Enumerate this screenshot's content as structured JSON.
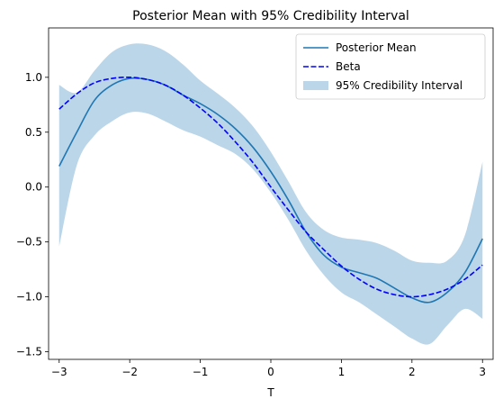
{
  "chart_data": {
    "type": "line",
    "title": "Posterior Mean with 95% Credibility Interval",
    "xlabel": "T",
    "ylabel": "",
    "xlim": [
      -3.15,
      3.15
    ],
    "ylim": [
      -1.57,
      1.45
    ],
    "xticks": [
      -3,
      -2,
      -1,
      0,
      1,
      2,
      3
    ],
    "xtick_labels": [
      "−3",
      "−2",
      "−1",
      "0",
      "1",
      "2",
      "3"
    ],
    "yticks": [
      -1.5,
      -1.0,
      -0.5,
      0.0,
      0.5,
      1.0
    ],
    "ytick_labels": [
      "−1.5",
      "−1.0",
      "−0.5",
      "0.0",
      "0.5",
      "1.0"
    ],
    "legend_position": "top-right",
    "x": [
      -3.0,
      -2.75,
      -2.5,
      -2.25,
      -2.0,
      -1.75,
      -1.5,
      -1.25,
      -1.0,
      -0.75,
      -0.5,
      -0.25,
      0.0,
      0.25,
      0.5,
      0.75,
      1.0,
      1.25,
      1.5,
      1.75,
      2.0,
      2.25,
      2.5,
      2.75,
      3.0
    ],
    "series": [
      {
        "name": "Posterior Mean",
        "style": "solid",
        "color": "#1f77b4",
        "values": [
          0.19,
          0.5,
          0.79,
          0.93,
          0.99,
          0.98,
          0.93,
          0.84,
          0.76,
          0.66,
          0.53,
          0.36,
          0.14,
          -0.12,
          -0.41,
          -0.62,
          -0.73,
          -0.78,
          -0.83,
          -0.92,
          -1.01,
          -1.05,
          -0.96,
          -0.78,
          -0.47
        ]
      },
      {
        "name": "Beta",
        "style": "dashed",
        "color": "#0000ff",
        "values": [
          0.71,
          0.85,
          0.95,
          0.99,
          1.0,
          0.98,
          0.93,
          0.84,
          0.72,
          0.58,
          0.41,
          0.22,
          0.0,
          -0.21,
          -0.41,
          -0.57,
          -0.72,
          -0.84,
          -0.93,
          -0.98,
          -1.0,
          -0.98,
          -0.93,
          -0.84,
          -0.71
        ]
      },
      {
        "name": "95% Credibility Interval",
        "style": "band",
        "color": "#1f77b4",
        "opacity": 0.3,
        "upper": [
          0.93,
          0.86,
          1.06,
          1.23,
          1.3,
          1.3,
          1.24,
          1.12,
          0.97,
          0.85,
          0.72,
          0.55,
          0.32,
          0.05,
          -0.23,
          -0.39,
          -0.46,
          -0.48,
          -0.51,
          -0.58,
          -0.67,
          -0.69,
          -0.67,
          -0.44,
          0.23
        ],
        "lower": [
          -0.54,
          0.2,
          0.47,
          0.6,
          0.68,
          0.67,
          0.6,
          0.52,
          0.46,
          0.38,
          0.3,
          0.16,
          -0.05,
          -0.3,
          -0.58,
          -0.8,
          -0.96,
          -1.05,
          -1.16,
          -1.27,
          -1.38,
          -1.43,
          -1.26,
          -1.11,
          -1.2
        ]
      }
    ]
  }
}
